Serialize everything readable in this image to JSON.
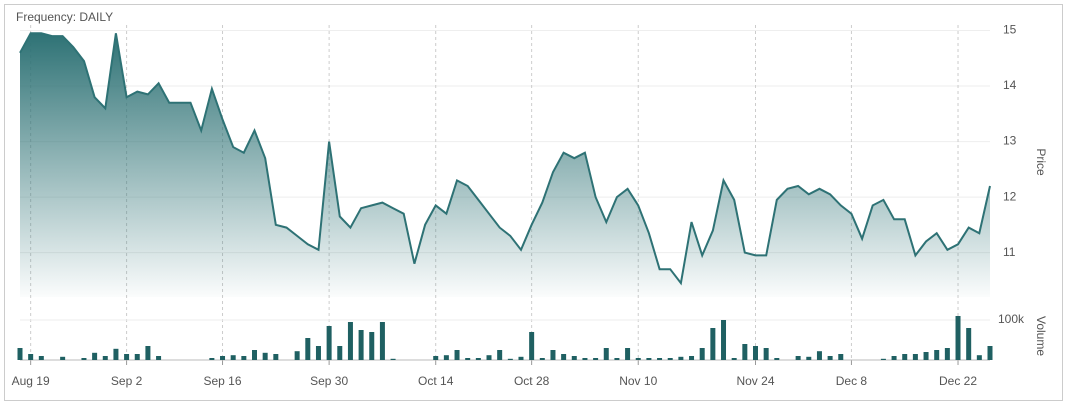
{
  "chart_data": {
    "type": "area",
    "title": "Frequency: DAILY",
    "ylabel": "Price",
    "color": "#2e7275",
    "categories": [
      null,
      "Aug 19",
      null,
      null,
      null,
      null,
      null,
      null,
      null,
      null,
      "Sep 2",
      null,
      null,
      null,
      null,
      null,
      null,
      null,
      null,
      "Sep 16",
      null,
      null,
      null,
      null,
      null,
      null,
      null,
      null,
      null,
      "Sep 30",
      null,
      null,
      null,
      null,
      null,
      null,
      null,
      null,
      null,
      "Oct 14",
      null,
      null,
      null,
      null,
      null,
      null,
      null,
      null,
      "Oct 28",
      null,
      null,
      null,
      null,
      null,
      null,
      null,
      null,
      null,
      "Nov 10",
      null,
      null,
      null,
      null,
      null,
      null,
      null,
      null,
      null,
      null,
      "Nov 24",
      null,
      null,
      null,
      null,
      null,
      null,
      null,
      null,
      "Dec 8",
      null,
      null,
      null,
      null,
      null,
      null,
      null,
      null,
      null,
      "Dec 22",
      null,
      null,
      null
    ],
    "values": [
      14.6,
      14.95,
      14.95,
      14.9,
      14.9,
      14.7,
      14.45,
      13.8,
      13.6,
      14.95,
      13.8,
      13.9,
      13.85,
      14.05,
      13.7,
      13.7,
      13.7,
      13.2,
      13.95,
      13.4,
      12.9,
      12.8,
      13.2,
      12.7,
      11.5,
      11.45,
      11.3,
      11.15,
      11.05,
      13.0,
      11.65,
      11.45,
      11.8,
      11.85,
      11.9,
      11.8,
      11.7,
      10.8,
      11.5,
      11.85,
      11.7,
      12.3,
      12.2,
      11.95,
      11.7,
      11.45,
      11.3,
      11.05,
      11.5,
      11.9,
      12.45,
      12.8,
      12.7,
      12.8,
      12.0,
      11.55,
      12.0,
      12.15,
      11.85,
      11.35,
      10.7,
      10.7,
      10.45,
      11.55,
      10.95,
      11.4,
      12.3,
      11.95,
      11.0,
      10.95,
      10.95,
      11.95,
      12.15,
      12.2,
      12.05,
      12.15,
      12.05,
      11.85,
      11.7,
      11.25,
      11.85,
      11.95,
      11.6,
      11.6,
      10.95,
      11.2,
      11.35,
      11.05,
      11.15,
      11.45,
      11.35,
      12.2
    ],
    "ylim": [
      10.2,
      15.1
    ],
    "yticks": [
      11,
      12,
      13,
      14,
      15
    ],
    "grid": true,
    "volume": {
      "label": "Volume",
      "color": "#1f6062",
      "values": [
        30000,
        15000,
        10000,
        0,
        8000,
        0,
        5000,
        18000,
        10000,
        28000,
        15000,
        15000,
        35000,
        10000,
        0,
        0,
        0,
        0,
        5000,
        10000,
        12000,
        10000,
        25000,
        18000,
        15000,
        0,
        22000,
        55000,
        35000,
        85000,
        35000,
        95000,
        75000,
        70000,
        95000,
        3000,
        0,
        0,
        0,
        10000,
        12000,
        25000,
        5000,
        5000,
        12000,
        25000,
        3000,
        8000,
        70000,
        5000,
        25000,
        15000,
        10000,
        5000,
        5000,
        30000,
        5000,
        30000,
        5000,
        5000,
        5000,
        5000,
        8000,
        10000,
        30000,
        80000,
        100000,
        5000,
        40000,
        35000,
        30000,
        5000,
        0,
        10000,
        8000,
        22000,
        10000,
        15000,
        0,
        0,
        0,
        3000,
        10000,
        15000,
        15000,
        20000,
        25000,
        30000,
        110000,
        80000,
        12000,
        35000
      ],
      "ylim": [
        0,
        125000
      ],
      "yticks": [
        {
          "value": 100000,
          "label": "100k"
        }
      ]
    }
  }
}
